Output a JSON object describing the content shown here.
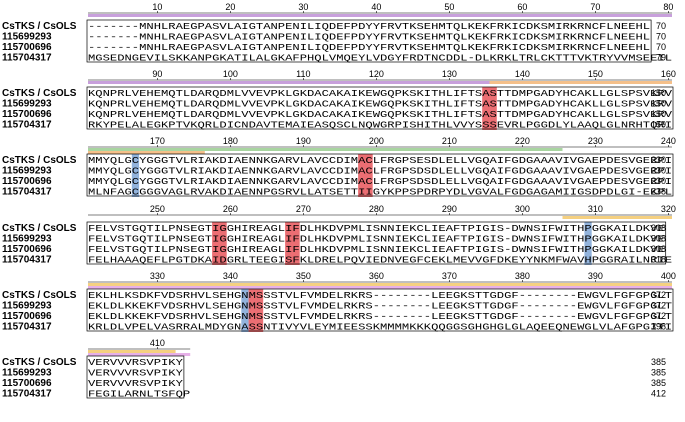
{
  "alignment": {
    "names": [
      "CsTKS / CsOLS",
      "115699293",
      "115700696",
      "115704317"
    ],
    "blocks": [
      {
        "ticks": [
          10,
          20,
          30,
          40,
          50,
          60,
          70,
          80
        ],
        "tick_start_col": 10,
        "seqs": [
          "-------MNHLRAEGPASVLAIGTANPENILIQDEFPDYYFRVTKSEHMTQLKEKFRKICDKSMIRKRNCFLNEEHL",
          "-------MNHLRAEGPASVLAIGTANPENILIQDEFPDYYFRVTKSEHMTQLKEKFRKICDKSMIRKRNCFLNEEHL",
          "-------MNHLRAEGPASVLAIGTANPENILIQDEFPDYYFRVTKSEHMTQLKEKFRKICDKSMIRKRNCFLNEEHL",
          "MGSEDNGEVILSKKANPGKATILALGKAFPHQLVMQEYLVDGYFRDTNCDDL-DLKRKLTRLCKTTTVKTRYVVMSEEIL"
        ],
        "ends": [
          "70",
          "70",
          "70",
          "79"
        ],
        "bars": [
          {
            "color": "#c8a0dc",
            "from": 1,
            "to": 80,
            "row": 0
          }
        ]
      },
      {
        "ticks": [
          90,
          100,
          110,
          120,
          130,
          140,
          150,
          160
        ],
        "tick_start_col": 10,
        "seqs": [
          "KQNPRLVEHEMQTLDARQDMLVVEVPKLGKDACAKAIKEWGQPKSKITHLIFTSASTTDMPGADYHCAKLLGLSPSVKRV",
          "KQNPRLVEHEMQTLDARQDMLVVEVPKLGKDACAKAIKEWGQPKSKITHLIFTSASTTDMPGADYHCAKLLGLSPSVKRV",
          "KQNPRLVEHEMQTLDARQDMLVVEVPKLGKDACAKAIKEWGQPKSKITHLIFTSASTTDMPGADYHCAKLLGLSPSVKRV",
          "RKYPELALEGKPTVKQRLDICNDAVTEMAIEASQSCLNQWGRPISHITHLVVYSSSEVRLPGGDLYLAAQLGLNRHTQRI"
        ],
        "ends": [
          "150",
          "150",
          "150",
          "159"
        ],
        "bars": [
          {
            "color": "#c8a0dc",
            "from": 1,
            "to": 55,
            "row": 0
          },
          {
            "color": "#f5c08a",
            "from": 56,
            "to": 80,
            "row": 0
          }
        ]
      },
      {
        "ticks": [
          170,
          180,
          190,
          200,
          210,
          220,
          230,
          240
        ],
        "tick_start_col": 10,
        "seqs": [
          "MMYQLGCYGGGTVLRIAKDIAENNKGARVLAVCCDIMACLFRGPSESDLELLVGQAIFGDGAAAVIVGAEPDESVGERPI",
          "MMYQLGCYGGGTVLRIAKDIAENNKGARVLAVCCDIMACLFRGPSDSDLELLVGQAIFGDGAAAVIVGAEPDESVGERPI",
          "MMYQLGCYGGGTVLRIAKDIAENNKGARVLAVCCDIMACLFRGPSDSDLELLVGQAIFGDGAAAVIVGAEPDESVGERPI",
          "MLNFAGCGGGVAGLRVAKDIAENNPGSRVLLATSETTIIGYKPPSPDRPYDLVGVALFGDGAGAMIIGSDPDLGI-EKPL"
        ],
        "ends": [
          "230",
          "230",
          "230",
          "238"
        ],
        "bars": [
          {
            "color": "#a8d5a0",
            "from": 1,
            "to": 65,
            "row": 0
          },
          {
            "color": "#f5c08a",
            "from": 1,
            "to": 16,
            "row": 1
          }
        ]
      },
      {
        "ticks": [
          250,
          260,
          270,
          280,
          290,
          300,
          310,
          320
        ],
        "tick_start_col": 10,
        "seqs": [
          "FELVSTGQTILPNSEGTIGGHIREAGLIFDLHKDVPMLISNNIEKCLIEAFTPIGIS-DWNSIFWITHPGGKAILDKVE",
          "FELVSTGQTILPNSEGTIGGHIREAGLIFDLHKDVPMLISNNIEKCLIEAFTPIGIS-DWNSIFWITHPGGKAILDKVE",
          "FELVSTGQTILPNSEGTIGGHIREAGLIFDLHKDVPMLISNNIEKCLIEAFTPIGIS-DWNSIFWITHPGGKAILDKVE",
          "FELHAAAQEFLPGTDKAIDGRLTEEGISFKLDRELPQVIEDNVEGFCEKLMEVVGFDKEYYNKMFWAVHPGGRAILNRIE"
        ],
        "ends": [
          "308",
          "308",
          "308",
          "318"
        ],
        "bars": [
          {
            "color": "#f5d080",
            "from": 66,
            "to": 80,
            "row": 0
          }
        ]
      },
      {
        "ticks": [
          330,
          340,
          350,
          360,
          370,
          380,
          390,
          400
        ],
        "tick_start_col": 10,
        "seqs": [
          "EKLHLKSDKFVDSRHVLSEHGNMSSSTVLFVMDELRKRS--------LEEGKSTTGDGF--------EWGVLFGFGPGLT",
          "EKLDLKKEKFVDSRHVLSEHGNMSSSTVLFVMDELRKRS--------LEEGKSTTGDGF--------EWGVLFGFGPGLT",
          "EKLDLKKEKFVDSRHVLSEHGNMSSSTVLFVMDELRKRS--------LEEGKSTTGDGF--------EWGVLFGFGPGLT",
          "KRLDLVPELVASRRALMDYGNASSNTIVYVLEYMIEESSKMMMMKKKQQGGSGHGHGLGLAQEEQNEWGLVLAFGPGITI"
        ],
        "ends": [
          "372",
          "372",
          "372",
          "398"
        ],
        "bars": [
          {
            "color": "#f5d080",
            "from": 1,
            "to": 80,
            "row": 0
          },
          {
            "color": "#e6b0e8",
            "from": 1,
            "to": 80,
            "row": 1
          }
        ]
      },
      {
        "ticks": [
          410
        ],
        "tick_start_col": 10,
        "seqs": [
          "VERVVVRSVPIKY",
          "VERVVVRSVPIKY",
          "VERVVVRSVPIKY",
          "FEGILARNLTSFQP"
        ],
        "ends": [
          "385",
          "385",
          "385",
          "412"
        ],
        "bars": [
          {
            "color": "#f5d080",
            "from": 1,
            "to": 12,
            "row": 0
          },
          {
            "color": "#e6b0e8",
            "from": 1,
            "to": 14,
            "row": 1
          }
        ]
      }
    ],
    "highlights": [
      {
        "block": 1,
        "col_from": 55,
        "col_to": 56,
        "color": "#e8555a"
      },
      {
        "block": 2,
        "col_from": 7,
        "col_to": 7,
        "color": "#7fa6d6"
      },
      {
        "block": 2,
        "col_from": 38,
        "col_to": 39,
        "color": "#e8555a"
      },
      {
        "block": 3,
        "col_from": 18,
        "col_to": 19,
        "color": "#e8555a"
      },
      {
        "block": 3,
        "col_from": 28,
        "col_to": 29,
        "color": "#e8555a"
      },
      {
        "block": 3,
        "col_from": 69,
        "col_to": 69,
        "color": "#7fa6d6"
      },
      {
        "block": 4,
        "col_from": 22,
        "col_to": 22,
        "color": "#7fa6d6"
      },
      {
        "block": 4,
        "col_from": 23,
        "col_to": 24,
        "color": "#e8555a"
      }
    ]
  }
}
